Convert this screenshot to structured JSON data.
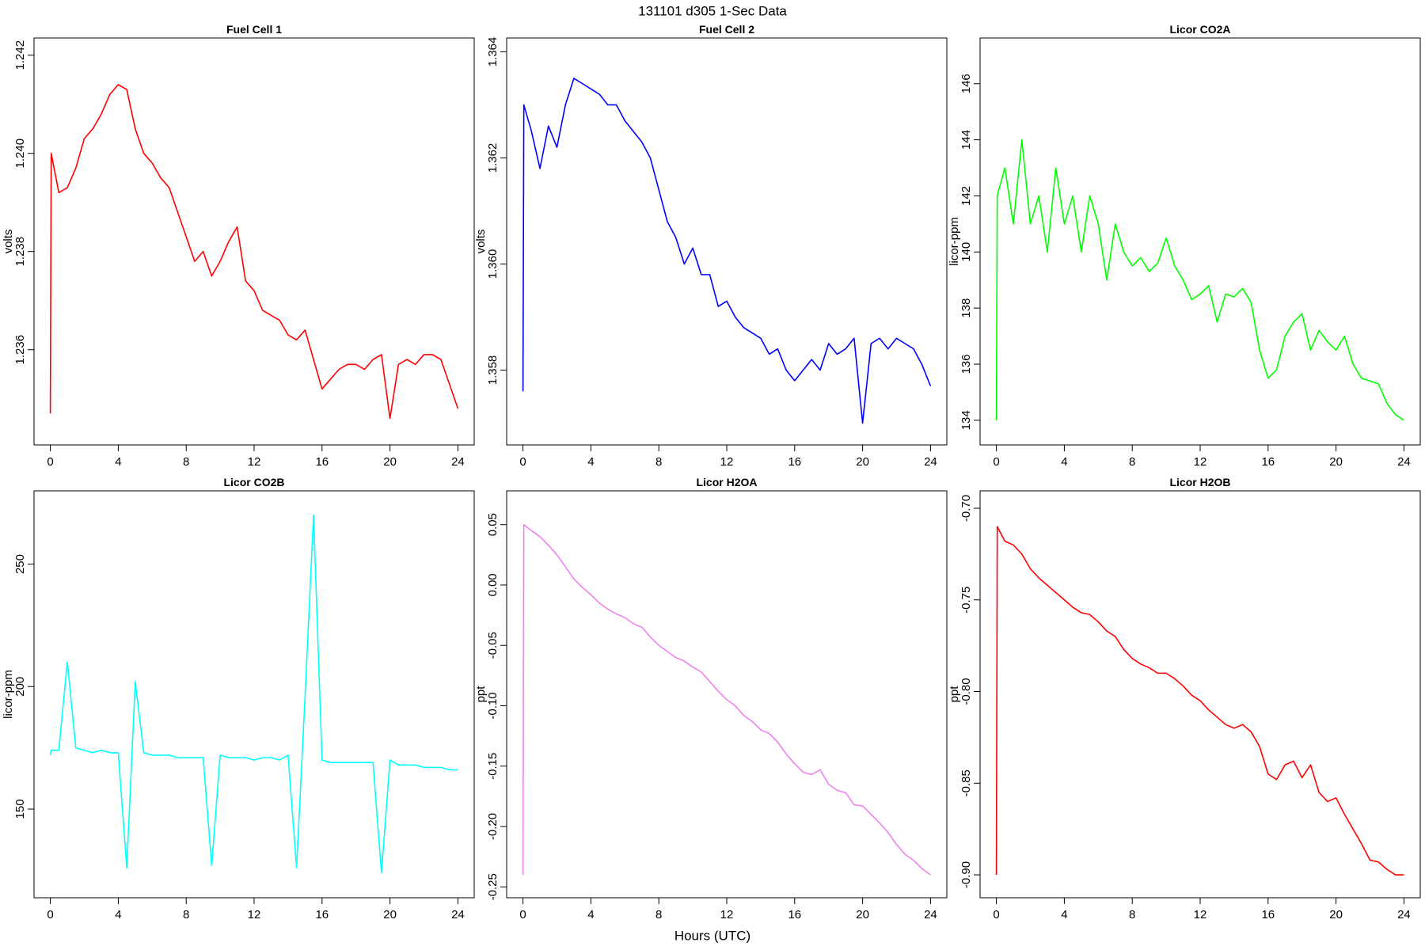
{
  "title": "131101   d305   1-Sec Data",
  "x_label": "Hours (UTC)",
  "chart_data": [
    {
      "type": "line",
      "title": "Fuel Cell 1",
      "y_label": "volts",
      "color": "#ff0000",
      "x": [
        0,
        0.05,
        0.5,
        1,
        1.5,
        2,
        2.5,
        3,
        3.5,
        4,
        4.5,
        5,
        5.5,
        6,
        6.5,
        7,
        7.5,
        8,
        8.5,
        9,
        9.5,
        10,
        10.5,
        11,
        11.5,
        12,
        12.5,
        13,
        13.5,
        14,
        14.5,
        15,
        15.5,
        16,
        16.5,
        17,
        17.5,
        18,
        18.5,
        19,
        19.5,
        20,
        20.5,
        21,
        21.5,
        22,
        22.5,
        23,
        23.5,
        24
      ],
      "values": [
        1.2347,
        1.24,
        1.2392,
        1.2393,
        1.2397,
        1.2403,
        1.2405,
        1.2408,
        1.2412,
        1.2414,
        1.2413,
        1.2405,
        1.24,
        1.2398,
        1.2395,
        1.2393,
        1.2388,
        1.2383,
        1.2378,
        1.238,
        1.2375,
        1.2378,
        1.2382,
        1.2385,
        1.2374,
        1.2372,
        1.2368,
        1.2367,
        1.2366,
        1.2363,
        1.2362,
        1.2364,
        1.2358,
        1.2352,
        1.2354,
        1.2356,
        1.2357,
        1.2357,
        1.2356,
        1.2358,
        1.2359,
        1.2346,
        1.2357,
        1.2358,
        1.2357,
        1.2359,
        1.2359,
        1.2358,
        1.2353,
        1.2348
      ],
      "xlim": [
        -0.96,
        24.96
      ],
      "xticks": [
        0,
        4,
        8,
        12,
        16,
        20,
        24
      ],
      "ylim": [
        1.23406,
        1.24235
      ],
      "yticks": [
        1.236,
        1.238,
        {
          "value": 1.24,
          "label": "1.240"
        },
        1.242
      ]
    },
    {
      "type": "line",
      "title": "Fuel Cell 2",
      "y_label": "volts",
      "color": "#0000ff",
      "x": [
        0,
        0.05,
        0.5,
        1,
        1.5,
        2,
        2.5,
        3,
        3.5,
        4,
        4.5,
        5,
        5.5,
        6,
        6.5,
        7,
        7.5,
        8,
        8.5,
        9,
        9.5,
        10,
        10.5,
        11,
        11.5,
        12,
        12.5,
        13,
        13.5,
        14,
        14.5,
        15,
        15.5,
        16,
        16.5,
        17,
        17.5,
        18,
        18.5,
        19,
        19.5,
        20,
        20.5,
        21,
        21.5,
        22,
        22.5,
        23,
        23.5,
        24
      ],
      "values": [
        1.3576,
        1.363,
        1.3625,
        1.3618,
        1.3626,
        1.3622,
        1.363,
        1.3635,
        1.3634,
        1.3633,
        1.3632,
        1.363,
        1.363,
        1.3627,
        1.3625,
        1.3623,
        1.362,
        1.3614,
        1.3608,
        1.3605,
        1.36,
        1.3603,
        1.3598,
        1.3598,
        1.3592,
        1.3593,
        1.359,
        1.3588,
        1.3587,
        1.3586,
        1.3583,
        1.3584,
        1.358,
        1.3578,
        1.358,
        1.3582,
        1.358,
        1.3585,
        1.3583,
        1.3584,
        1.3586,
        1.357,
        1.3585,
        1.3586,
        1.3584,
        1.3586,
        1.3585,
        1.3584,
        1.3581,
        1.3577
      ],
      "xlim": [
        -0.96,
        24.96
      ],
      "xticks": [
        0,
        4,
        8,
        12,
        16,
        20,
        24
      ],
      "ylim": [
        1.35659,
        1.36426
      ],
      "yticks": [
        1.358,
        {
          "value": 1.36,
          "label": "1.360"
        },
        1.362,
        1.364
      ]
    },
    {
      "type": "line",
      "title": "Licor CO2A",
      "y_label": "licor-ppm",
      "color": "#00ff00",
      "x": [
        0,
        0.05,
        0.5,
        1,
        1.5,
        2,
        2.5,
        3,
        3.5,
        4,
        4.5,
        5,
        5.5,
        6,
        6.5,
        7,
        7.5,
        8,
        8.5,
        9,
        9.5,
        10,
        10.5,
        11,
        11.5,
        12,
        12.5,
        13,
        13.5,
        14,
        14.5,
        15,
        15.5,
        16,
        16.5,
        17,
        17.5,
        18,
        18.5,
        19,
        19.5,
        20,
        20.5,
        21,
        21.5,
        22,
        22.5,
        23,
        23.5,
        24
      ],
      "values": [
        134.0,
        142,
        143,
        141,
        144,
        141,
        142,
        140,
        143,
        141,
        142,
        140,
        142,
        141,
        139,
        141,
        140,
        139.5,
        139.8,
        139.3,
        139.6,
        140.5,
        139.5,
        139,
        138.3,
        138.5,
        138.8,
        137.5,
        138.5,
        138.4,
        138.7,
        138.2,
        136.5,
        135.5,
        135.8,
        137.0,
        137.5,
        137.8,
        136.5,
        137.2,
        136.8,
        136.5,
        137.0,
        136.0,
        135.5,
        135.4,
        135.3,
        134.6,
        134.2,
        134.0
      ],
      "xlim": [
        -0.96,
        24.96
      ],
      "xticks": [
        0,
        4,
        8,
        12,
        16,
        20,
        24
      ],
      "ylim": [
        133.12,
        147.63
      ],
      "yticks": [
        134,
        136,
        138,
        140,
        142,
        144,
        146
      ]
    },
    {
      "type": "line",
      "title": "Licor CO2B",
      "y_label": "licor-ppm",
      "color": "#00ffff",
      "x": [
        0,
        0.05,
        0.5,
        1,
        1.5,
        2,
        2.5,
        3,
        3.5,
        4,
        4.5,
        5,
        5.5,
        6,
        6.5,
        7,
        7.5,
        8,
        8.5,
        9,
        9.5,
        10,
        10.5,
        11,
        11.5,
        12,
        12.5,
        13,
        13.5,
        14,
        14.5,
        15,
        15.5,
        16,
        16.5,
        17,
        17.5,
        18,
        18.5,
        19,
        19.5,
        20,
        20.5,
        21,
        21.5,
        22,
        22.5,
        23,
        23.5,
        24
      ],
      "values": [
        172,
        174,
        174,
        210,
        175,
        174,
        173,
        174,
        173,
        173,
        126,
        202,
        173,
        172,
        172,
        172,
        171,
        171,
        171,
        171,
        127,
        172,
        171,
        171,
        171,
        170,
        171,
        171,
        170,
        172,
        126,
        196,
        270,
        170,
        169,
        169,
        169,
        169,
        169,
        169,
        124,
        170,
        168,
        168,
        168,
        167,
        167,
        167,
        166,
        166
      ],
      "xlim": [
        -0.96,
        24.96
      ],
      "xticks": [
        0,
        4,
        8,
        12,
        16,
        20,
        24
      ],
      "ylim": [
        113.8,
        279.9
      ],
      "yticks": [
        150,
        200,
        250
      ]
    },
    {
      "type": "line",
      "title": "Licor H2OA",
      "y_label": "ppt",
      "color": "#ee82ee",
      "x": [
        0,
        0.05,
        0.5,
        1,
        1.5,
        2,
        2.5,
        3,
        3.5,
        4,
        4.5,
        5,
        5.5,
        6,
        6.5,
        7,
        7.5,
        8,
        8.5,
        9,
        9.5,
        10,
        10.5,
        11,
        11.5,
        12,
        12.5,
        13,
        13.5,
        14,
        14.5,
        15,
        15.5,
        16,
        16.5,
        17,
        17.5,
        18,
        18.5,
        19,
        19.5,
        20,
        20.5,
        21,
        21.5,
        22,
        22.5,
        23,
        23.5,
        24
      ],
      "values": [
        -0.24,
        0.05,
        0.045,
        0.04,
        0.033,
        0.025,
        0.015,
        0.005,
        -0.002,
        -0.008,
        -0.015,
        -0.02,
        -0.024,
        -0.027,
        -0.032,
        -0.035,
        -0.043,
        -0.05,
        -0.055,
        -0.06,
        -0.063,
        -0.068,
        -0.072,
        -0.08,
        -0.088,
        -0.095,
        -0.1,
        -0.108,
        -0.113,
        -0.12,
        -0.123,
        -0.13,
        -0.14,
        -0.148,
        -0.155,
        -0.157,
        -0.153,
        -0.165,
        -0.17,
        -0.172,
        -0.182,
        -0.183,
        -0.19,
        -0.197,
        -0.205,
        -0.215,
        -0.223,
        -0.228,
        -0.235,
        -0.24
      ],
      "xlim": [
        -0.96,
        24.96
      ],
      "xticks": [
        0,
        4,
        8,
        12,
        16,
        20,
        24
      ],
      "ylim": [
        -0.259,
        0.078
      ],
      "yticks": [
        -0.25,
        {
          "value": -0.2,
          "label": "-0.20"
        },
        -0.15,
        {
          "value": -0.1,
          "label": "-0.10"
        },
        -0.05,
        {
          "value": 0,
          "label": "0.00"
        },
        0.05
      ]
    },
    {
      "type": "line",
      "title": "Licor H2OB",
      "y_label": "ppt",
      "color": "#ff0000",
      "x": [
        0,
        0.05,
        0.5,
        1,
        1.5,
        2,
        2.5,
        3,
        3.5,
        4,
        4.5,
        5,
        5.5,
        6,
        6.5,
        7,
        7.5,
        8,
        8.5,
        9,
        9.5,
        10,
        10.5,
        11,
        11.5,
        12,
        12.5,
        13,
        13.5,
        14,
        14.5,
        15,
        15.5,
        16,
        16.5,
        17,
        17.5,
        18,
        18.5,
        19,
        19.5,
        20,
        20.5,
        21,
        21.5,
        22,
        22.5,
        23,
        23.5,
        24
      ],
      "values": [
        -0.9,
        -0.71,
        -0.718,
        -0.72,
        -0.725,
        -0.733,
        -0.738,
        -0.742,
        -0.746,
        -0.75,
        -0.754,
        -0.757,
        -0.758,
        -0.762,
        -0.767,
        -0.77,
        -0.777,
        -0.782,
        -0.785,
        -0.787,
        -0.79,
        -0.79,
        -0.793,
        -0.797,
        -0.802,
        -0.805,
        -0.81,
        -0.814,
        -0.818,
        -0.82,
        -0.818,
        -0.822,
        -0.83,
        -0.845,
        -0.848,
        -0.84,
        -0.838,
        -0.847,
        -0.84,
        -0.855,
        -0.86,
        -0.858,
        -0.867,
        -0.875,
        -0.883,
        -0.892,
        -0.893,
        -0.897,
        -0.9,
        -0.9
      ],
      "xlim": [
        -0.96,
        24.96
      ],
      "xticks": [
        0,
        4,
        8,
        12,
        16,
        20,
        24
      ],
      "ylim": [
        -0.9125,
        -0.6905
      ],
      "yticks": [
        {
          "value": -0.9,
          "label": "-0.90"
        },
        -0.85,
        {
          "value": -0.8,
          "label": "-0.80"
        },
        -0.75,
        {
          "value": -0.7,
          "label": "-0.70"
        }
      ]
    }
  ]
}
